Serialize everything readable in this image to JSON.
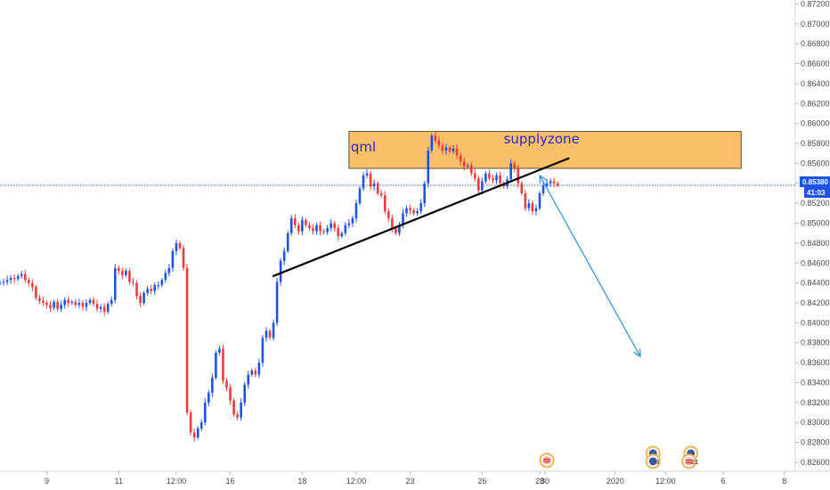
{
  "chart_data": {
    "type": "candlestick",
    "title": "",
    "colors": {
      "up": "#1e53e5",
      "down": "#ef3b3b",
      "zone_fill": "#f9bf69",
      "zone_border": "#3a2a12",
      "trendline": "#000000",
      "projection": "#2a8fd9",
      "price_line": "#3a5fae",
      "price_tag": "#1e53e5",
      "timer_tag": "#1e53e5",
      "annotation_text": "#2b26c9",
      "grid": "#ffffff",
      "axis_text": "#4a4a4a"
    },
    "y_axis": {
      "range": [
        0.8251,
        0.8724
      ],
      "ticks": [
        "0.87200",
        "0.87000",
        "0.86800",
        "0.86600",
        "0.86400",
        "0.86200",
        "0.86000",
        "0.85800",
        "0.85600",
        "0.85400",
        "0.85200",
        "0.85000",
        "0.84800",
        "0.84600",
        "0.84400",
        "0.84200",
        "0.84000",
        "0.83800",
        "0.83600",
        "0.83400",
        "0.83200",
        "0.83000",
        "0.82800",
        "0.82600"
      ],
      "tick_values": [
        0.872,
        0.87,
        0.868,
        0.866,
        0.864,
        0.862,
        0.86,
        0.858,
        0.856,
        0.854,
        0.852,
        0.85,
        0.848,
        0.846,
        0.844,
        0.842,
        0.84,
        0.838,
        0.836,
        0.834,
        0.832,
        0.83,
        0.828,
        0.826
      ]
    },
    "x_axis": {
      "domain": [
        0,
        218
      ],
      "tick_labels": [
        "9",
        "11",
        "12:00",
        "16",
        "18",
        "12:00",
        "23",
        "26",
        "28",
        "30",
        "2020",
        "12:00",
        "6",
        "8"
      ],
      "tick_values": [
        13,
        33,
        49,
        64,
        84,
        99,
        114,
        134,
        150,
        151.5,
        171,
        185,
        201,
        218
      ]
    },
    "current_price": {
      "value": 0.8538,
      "label": "0.85380",
      "timer": "41:03"
    },
    "candles_close": [
      0.844,
      0.8441,
      0.8443,
      0.8445,
      0.8444,
      0.8447,
      0.8449,
      0.8443,
      0.844,
      0.8436,
      0.8425,
      0.8422,
      0.842,
      0.8418,
      0.8415,
      0.8421,
      0.8414,
      0.8418,
      0.8423,
      0.842,
      0.8421,
      0.8418,
      0.842,
      0.8416,
      0.842,
      0.8423,
      0.8419,
      0.8414,
      0.8416,
      0.8411,
      0.8419,
      0.8423,
      0.8455,
      0.8452,
      0.8448,
      0.8452,
      0.8441,
      0.844,
      0.8427,
      0.842,
      0.843,
      0.8434,
      0.8432,
      0.8438,
      0.8438,
      0.8443,
      0.845,
      0.8455,
      0.8472,
      0.848,
      0.8475,
      0.8455,
      0.831,
      0.829,
      0.8285,
      0.8294,
      0.83,
      0.832,
      0.833,
      0.8345,
      0.837,
      0.8374,
      0.8342,
      0.8335,
      0.8322,
      0.8308,
      0.8305,
      0.832,
      0.8338,
      0.8348,
      0.8352,
      0.8348,
      0.836,
      0.8385,
      0.8392,
      0.8385,
      0.84,
      0.8441,
      0.8462,
      0.8472,
      0.849,
      0.8505,
      0.8498,
      0.8492,
      0.8503,
      0.8498,
      0.8495,
      0.8492,
      0.8498,
      0.8492,
      0.8491,
      0.8495,
      0.85,
      0.8495,
      0.8487,
      0.849,
      0.8498,
      0.85,
      0.8505,
      0.852,
      0.8535,
      0.8548,
      0.855,
      0.8537,
      0.854,
      0.853,
      0.8528,
      0.8512,
      0.8505,
      0.8495,
      0.849,
      0.8498,
      0.851,
      0.8515,
      0.8513,
      0.851,
      0.8512,
      0.852,
      0.854,
      0.8573,
      0.8588,
      0.8583,
      0.8578,
      0.8573,
      0.8576,
      0.8572,
      0.8575,
      0.8568,
      0.8562,
      0.8557,
      0.8558,
      0.855,
      0.8545,
      0.8533,
      0.8542,
      0.855,
      0.8545,
      0.8543,
      0.8548,
      0.854,
      0.8537,
      0.8544,
      0.856,
      0.8555,
      0.854,
      0.853,
      0.8515,
      0.852,
      0.8512,
      0.8515,
      0.853,
      0.8538,
      0.854,
      0.8542,
      0.854,
      0.8538
    ],
    "supply_zone": {
      "from_price": 0.8592,
      "to_price": 0.8555,
      "from_x": 97,
      "to_x": 206
    },
    "trendline": {
      "start": {
        "x": 76,
        "price": 0.8447
      },
      "end": {
        "x": 158,
        "price": 0.8565
      }
    },
    "projection_arrow": {
      "start": {
        "x": 150,
        "price": 0.8548
      },
      "end": {
        "x": 178,
        "price": 0.8366
      }
    },
    "annotations": [
      {
        "text": "qml",
        "x": 97.5,
        "price": 0.8572
      },
      {
        "text": "supplyzone",
        "x": 140,
        "price": 0.858
      }
    ],
    "event_markers": [
      {
        "kind": "flag",
        "x": 152,
        "price": 0.8262,
        "count": ""
      },
      {
        "kind": "blue",
        "x": 181.5,
        "price": 0.8269,
        "count": ""
      },
      {
        "kind": "blue",
        "x": 181.5,
        "price": 0.8261,
        "count": "3"
      },
      {
        "kind": "blue",
        "x": 192,
        "price": 0.8269,
        "count": ""
      },
      {
        "kind": "flag",
        "x": 191.5,
        "price": 0.8261,
        "count": "21"
      }
    ]
  }
}
